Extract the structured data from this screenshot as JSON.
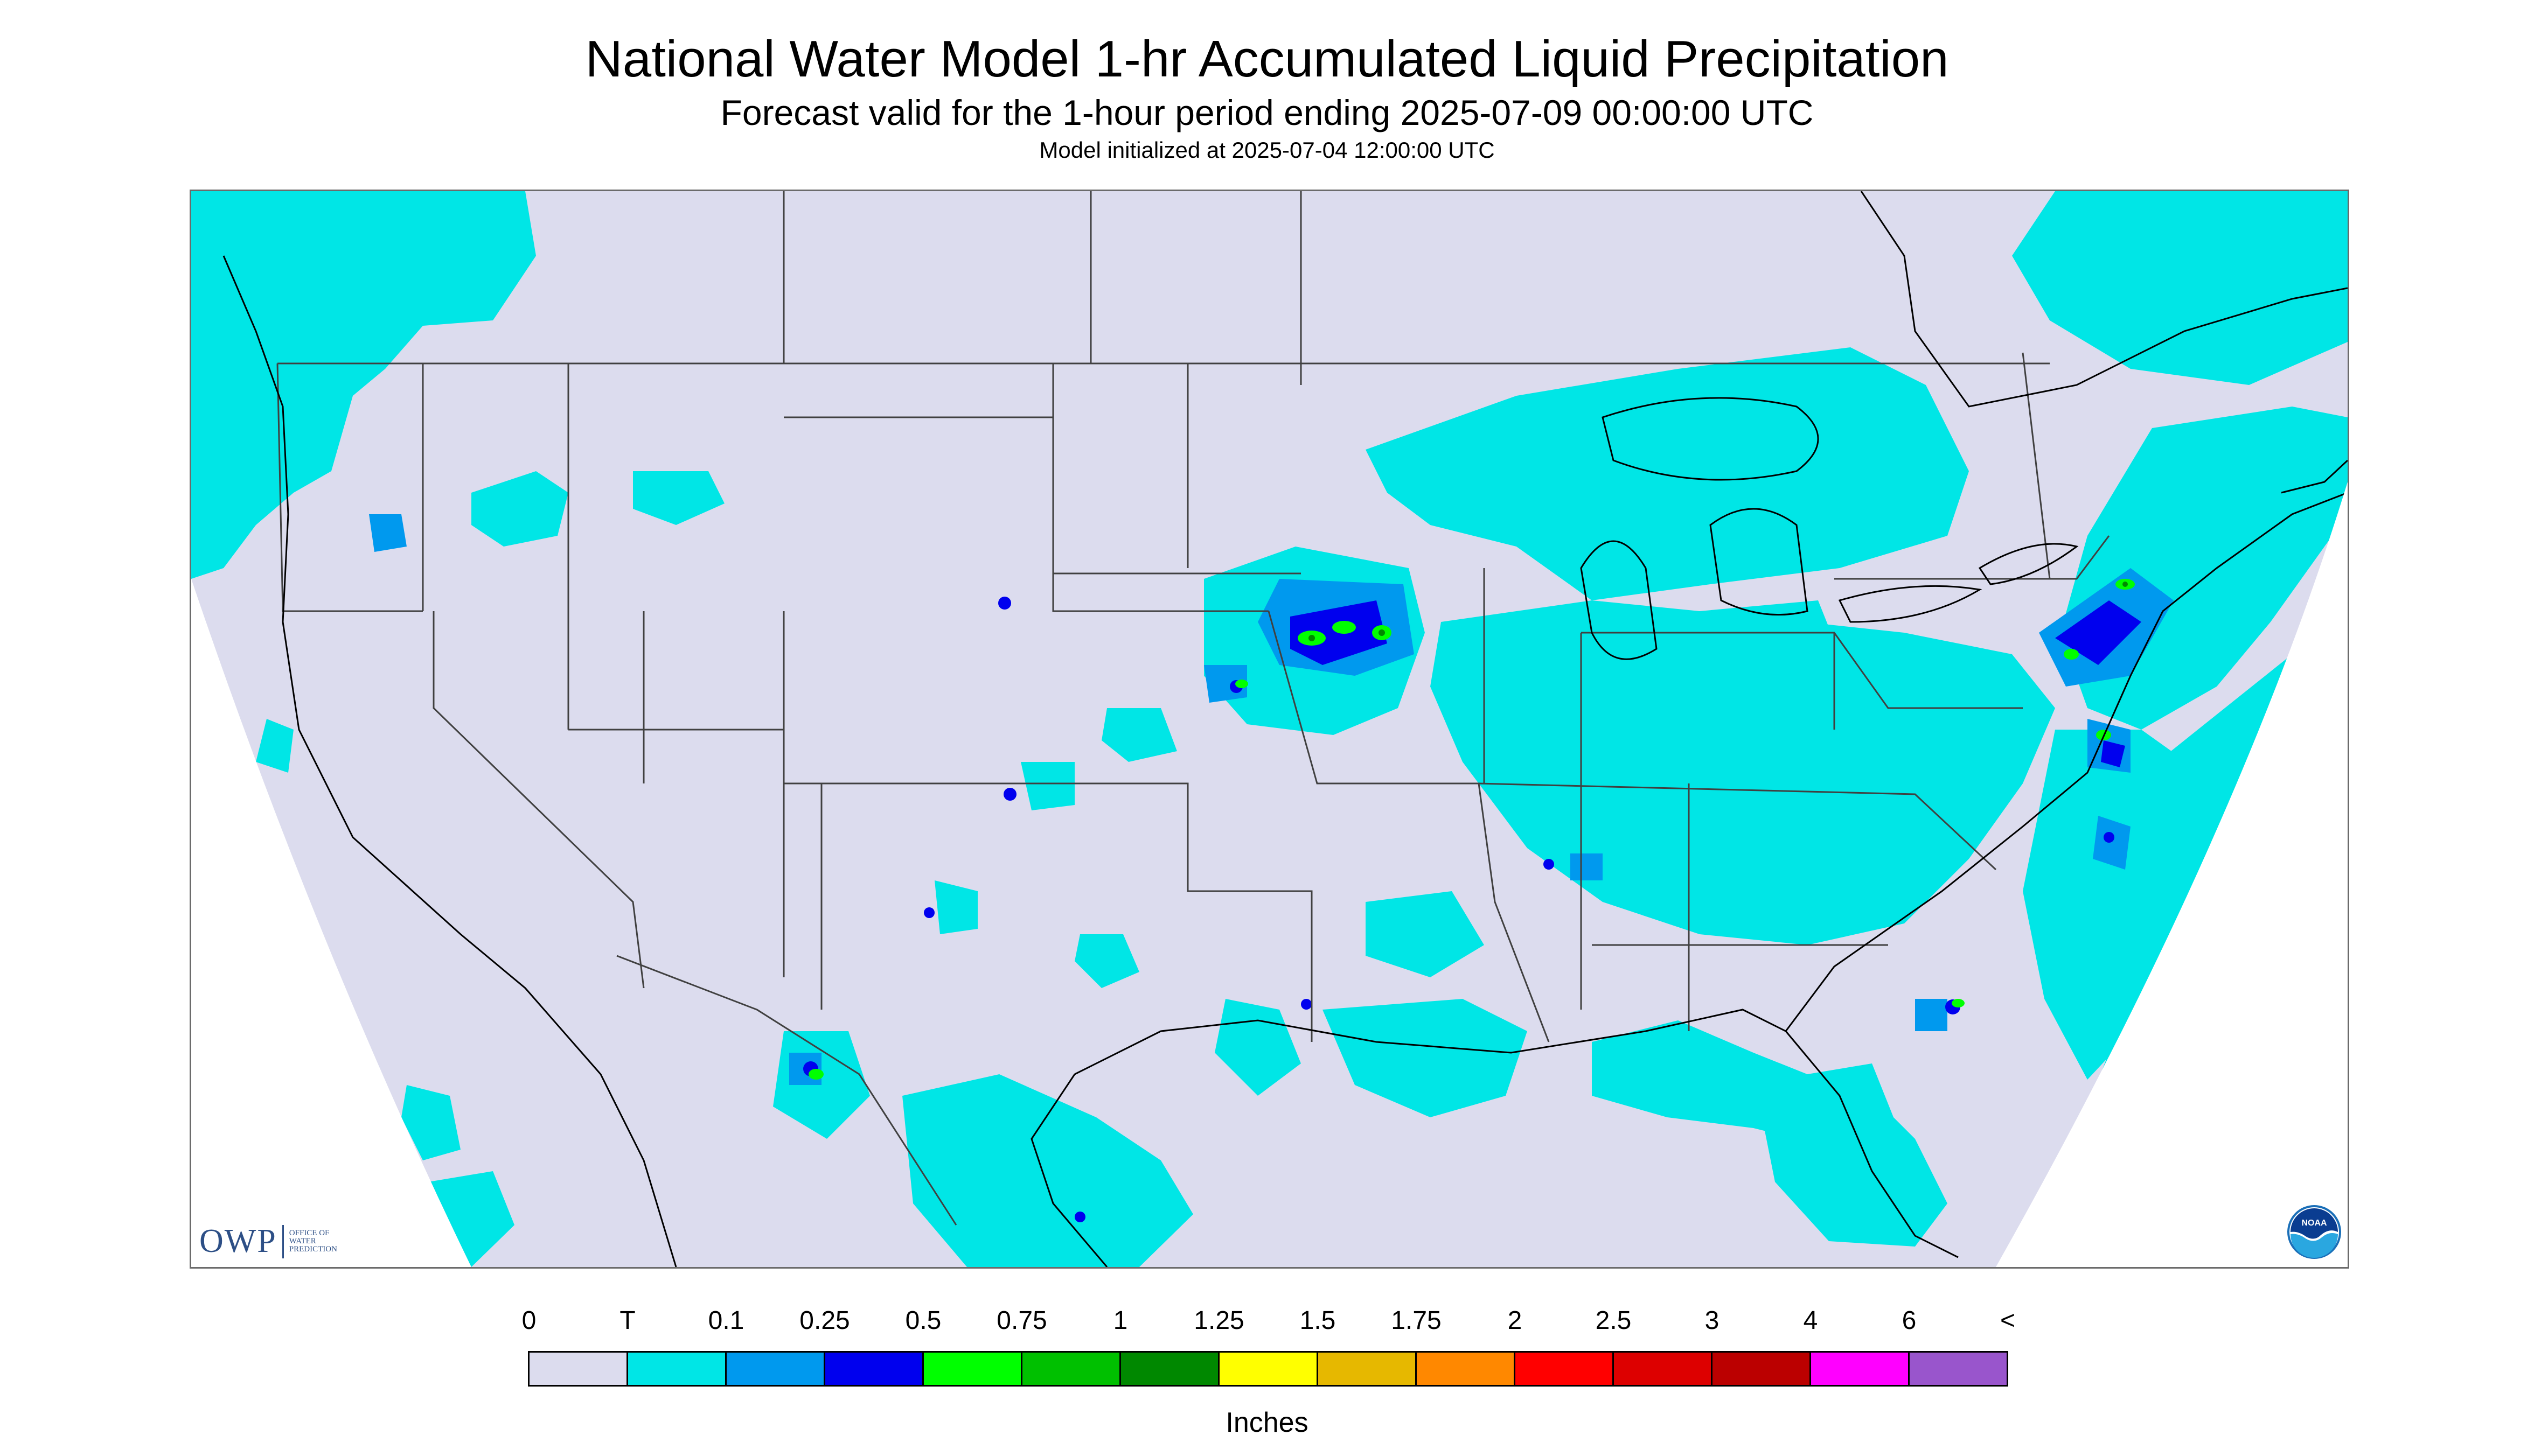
{
  "header": {
    "title": "National Water Model 1-hr Accumulated Liquid Precipitation",
    "subtitle": "Forecast valid for the 1-hour period ending 2025-07-09 00:00:00 UTC",
    "init": "Model initialized at 2025-07-04 12:00:00 UTC"
  },
  "logos": {
    "owp_text": "OWP",
    "owp_sub": "OFFICE OF\nWATER\nPREDICTION",
    "noaa_text": "NOAA"
  },
  "legend": {
    "units": "Inches",
    "ticks": [
      "0",
      "T",
      "0.1",
      "0.25",
      "0.5",
      "0.75",
      "1",
      "1.25",
      "1.5",
      "1.75",
      "2",
      "2.5",
      "3",
      "4",
      "6",
      "<"
    ],
    "colors": [
      "#dcdcee",
      "#00e6e6",
      "#0099ee",
      "#0000ee",
      "#00ff00",
      "#00c000",
      "#008800",
      "#ffff00",
      "#e6b800",
      "#ff8800",
      "#ff0000",
      "#dd0000",
      "#bb0000",
      "#ff00ff",
      "#9955cc"
    ]
  },
  "map_colors": {
    "outside": "#ffffff",
    "no_precip": "#dcdcee",
    "boundary": "#404040",
    "coast": "#000000"
  }
}
